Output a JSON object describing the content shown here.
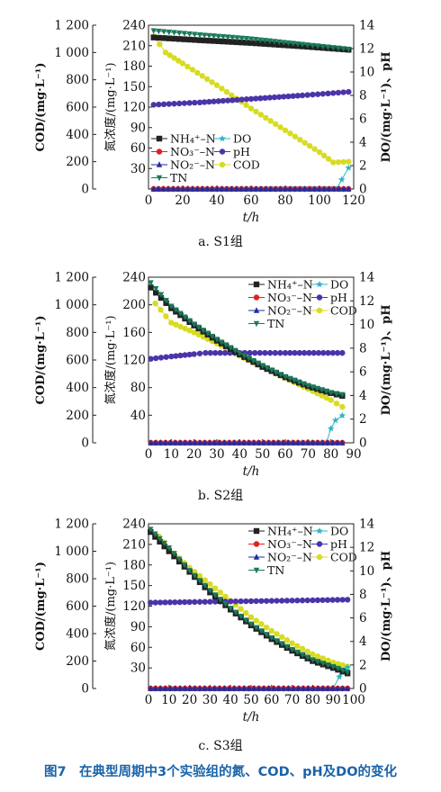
{
  "caption": "图7　在典型周期中3个实验组的氮、COD、pH及DO的变化",
  "axis_labels": {
    "cod": "COD/(mg·L⁻¹)",
    "n": "氮浓度/(mg·L⁻¹)",
    "do_ph": "DO/(mg·L⁻¹)、pH",
    "x": "t/h"
  },
  "colors": {
    "NH4": "#222222",
    "NO3": "#e32020",
    "NO2": "#1f2ea0",
    "TN": "#1a7a5a",
    "DO": "#2fb5c4",
    "pH": "#4b34a8",
    "COD": "#d8db22"
  },
  "chart_data": [
    {
      "type": "line",
      "title": "a. S1组",
      "xlabel": "t/h",
      "xlim": [
        0,
        120
      ],
      "xticks": [
        0,
        20,
        40,
        60,
        80,
        100,
        120
      ],
      "y_left_label": "COD/(mg·L⁻¹)",
      "y_left_lim": [
        0,
        1200
      ],
      "y_left_ticks": [
        0,
        200,
        400,
        600,
        800,
        1000,
        1200
      ],
      "y_left_ticklabels": [
        "0",
        "200",
        "400",
        "600",
        "800",
        "1 000",
        "1 200"
      ],
      "y_mid_label": "氮浓度/(mg·L⁻¹)",
      "y_mid_lim": [
        0,
        240
      ],
      "y_mid_ticks": [
        30,
        60,
        90,
        120,
        150,
        180,
        210,
        240
      ],
      "y_right_label": "DO/(mg·L⁻¹)、pH",
      "y_right_lim": [
        0,
        14
      ],
      "y_right_ticks": [
        0,
        2,
        4,
        6,
        8,
        10,
        12,
        14
      ],
      "legend": [
        "NH4",
        "DO",
        "NO3",
        "pH",
        "NO2",
        "COD",
        "TN"
      ],
      "series": [
        {
          "name": "NH₄⁺–N",
          "key": "NH4",
          "axis": "mid",
          "marker": "square",
          "points": [
            [
              3,
              222
            ],
            [
              30,
              218
            ],
            [
              60,
              214
            ],
            [
              90,
              209
            ],
            [
              117,
              204
            ]
          ]
        },
        {
          "name": "NO₃⁻–N",
          "key": "NO3",
          "axis": "mid",
          "marker": "circle",
          "points": [
            [
              3,
              0
            ],
            [
              117,
              0
            ]
          ]
        },
        {
          "name": "NO₂⁻–N",
          "key": "NO2",
          "axis": "mid",
          "marker": "triangle",
          "points": [
            [
              3,
              0
            ],
            [
              117,
              0
            ]
          ]
        },
        {
          "name": "TN",
          "key": "TN",
          "axis": "mid",
          "marker": "triangle-down",
          "points": [
            [
              3,
              232
            ],
            [
              30,
              226
            ],
            [
              60,
              220
            ],
            [
              90,
              212
            ],
            [
              117,
              205
            ]
          ]
        },
        {
          "name": "DO",
          "key": "DO",
          "axis": "right",
          "marker": "star",
          "points": [
            [
              3,
              0
            ],
            [
              110,
              0
            ],
            [
              113,
              0.8
            ],
            [
              117,
              1.8
            ]
          ]
        },
        {
          "name": "pH",
          "key": "pH",
          "axis": "right",
          "marker": "circle",
          "points": [
            [
              3,
              7.2
            ],
            [
              30,
              7.4
            ],
            [
              60,
              7.7
            ],
            [
              90,
              8.0
            ],
            [
              117,
              8.3
            ]
          ]
        },
        {
          "name": "COD",
          "key": "COD",
          "axis": "left",
          "marker": "circle",
          "points": [
            [
              3,
              1120
            ],
            [
              10,
              1000
            ],
            [
              20,
              920
            ],
            [
              40,
              760
            ],
            [
              60,
              590
            ],
            [
              80,
              430
            ],
            [
              100,
              270
            ],
            [
              108,
              195
            ],
            [
              117,
              200
            ]
          ]
        }
      ]
    },
    {
      "type": "line",
      "title": "b. S2组",
      "xlabel": "t/h",
      "xlim": [
        0,
        90
      ],
      "xticks": [
        0,
        10,
        20,
        30,
        40,
        50,
        60,
        70,
        80,
        90
      ],
      "y_left_label": "COD/(mg·L⁻¹)",
      "y_left_lim": [
        0,
        1200
      ],
      "y_left_ticks": [
        0,
        200,
        400,
        600,
        800,
        1000,
        1200
      ],
      "y_left_ticklabels": [
        "0",
        "200",
        "400",
        "600",
        "800",
        "1 000",
        "1 200"
      ],
      "y_mid_label": "氮浓度/(mg·L⁻¹)",
      "y_mid_lim": [
        0,
        240
      ],
      "y_mid_ticks": [
        40,
        80,
        120,
        160,
        200,
        240
      ],
      "y_right_label": "DO/(mg·L⁻¹)、pH",
      "y_right_lim": [
        0,
        14
      ],
      "y_right_ticks": [
        0,
        2,
        4,
        6,
        8,
        10,
        12,
        14
      ],
      "legend": [
        "NH4",
        "DO",
        "NO3",
        "pH",
        "NO2",
        "COD",
        "TN"
      ],
      "series": [
        {
          "name": "NH₄⁺–N",
          "key": "NH4",
          "axis": "mid",
          "marker": "square",
          "points": [
            [
              1,
              225
            ],
            [
              10,
              195
            ],
            [
              20,
              170
            ],
            [
              30,
              148
            ],
            [
              40,
              128
            ],
            [
              50,
              110
            ],
            [
              60,
              95
            ],
            [
              70,
              82
            ],
            [
              80,
              72
            ],
            [
              85,
              68
            ]
          ]
        },
        {
          "name": "NO₃⁻–N",
          "key": "NO3",
          "axis": "mid",
          "marker": "circle",
          "points": [
            [
              1,
              0
            ],
            [
              85,
              0
            ]
          ]
        },
        {
          "name": "NO₂⁻–N",
          "key": "NO2",
          "axis": "mid",
          "marker": "triangle",
          "points": [
            [
              1,
              0
            ],
            [
              85,
              0
            ]
          ]
        },
        {
          "name": "TN",
          "key": "TN",
          "axis": "mid",
          "marker": "triangle-down",
          "points": [
            [
              1,
              232
            ],
            [
              10,
              198
            ],
            [
              20,
              172
            ],
            [
              30,
              150
            ],
            [
              40,
              130
            ],
            [
              50,
              112
            ],
            [
              60,
              96
            ],
            [
              70,
              83
            ],
            [
              80,
              73
            ],
            [
              85,
              70
            ]
          ]
        },
        {
          "name": "DO",
          "key": "DO",
          "axis": "right",
          "marker": "star",
          "points": [
            [
              1,
              0
            ],
            [
              78,
              0
            ],
            [
              80,
              1.2
            ],
            [
              82,
              1.9
            ],
            [
              85,
              2.3
            ]
          ]
        },
        {
          "name": "pH",
          "key": "pH",
          "axis": "right",
          "marker": "circle",
          "points": [
            [
              1,
              7.1
            ],
            [
              10,
              7.3
            ],
            [
              20,
              7.5
            ],
            [
              25,
              7.6
            ],
            [
              40,
              7.6
            ],
            [
              60,
              7.6
            ],
            [
              85,
              7.6
            ]
          ]
        },
        {
          "name": "COD",
          "key": "COD",
          "axis": "left",
          "marker": "circle",
          "points": [
            [
              3,
              1010
            ],
            [
              10,
              870
            ],
            [
              20,
              800
            ],
            [
              30,
              720
            ],
            [
              40,
              630
            ],
            [
              50,
              550
            ],
            [
              60,
              470
            ],
            [
              70,
              390
            ],
            [
              80,
              310
            ],
            [
              85,
              260
            ]
          ]
        }
      ]
    },
    {
      "type": "line",
      "title": "c. S3组",
      "xlabel": "t/h",
      "xlim": [
        0,
        100
      ],
      "xticks": [
        0,
        10,
        20,
        30,
        40,
        50,
        60,
        70,
        80,
        90,
        100
      ],
      "y_left_label": "COD/(mg·L⁻¹)",
      "y_left_lim": [
        0,
        1200
      ],
      "y_left_ticks": [
        0,
        200,
        400,
        600,
        800,
        1000,
        1200
      ],
      "y_left_ticklabels": [
        "0",
        "200",
        "400",
        "600",
        "800",
        "1 000",
        "1 200"
      ],
      "y_mid_label": "氮浓度/(mg·L⁻¹)",
      "y_mid_lim": [
        0,
        240
      ],
      "y_mid_ticks": [
        30,
        60,
        90,
        120,
        150,
        180,
        210,
        240
      ],
      "y_right_label": "DO/(mg·L⁻¹)、pH",
      "y_right_lim": [
        0,
        14
      ],
      "y_right_ticks": [
        0,
        2,
        4,
        6,
        8,
        10,
        12,
        14
      ],
      "legend": [
        "NH4",
        "DO",
        "NO3",
        "pH",
        "NO2",
        "COD",
        "TN"
      ],
      "series": [
        {
          "name": "NH₄⁺–N",
          "key": "NH4",
          "axis": "mid",
          "marker": "square",
          "points": [
            [
              1,
              228
            ],
            [
              10,
              200
            ],
            [
              20,
              170
            ],
            [
              30,
              140
            ],
            [
              40,
              115
            ],
            [
              50,
              92
            ],
            [
              60,
              72
            ],
            [
              70,
              55
            ],
            [
              80,
              40
            ],
            [
              90,
              30
            ],
            [
              97,
              22
            ]
          ]
        },
        {
          "name": "NO₃⁻–N",
          "key": "NO3",
          "axis": "mid",
          "marker": "circle",
          "points": [
            [
              1,
              0
            ],
            [
              97,
              0
            ]
          ]
        },
        {
          "name": "NO₂⁻–N",
          "key": "NO2",
          "axis": "mid",
          "marker": "triangle",
          "points": [
            [
              1,
              0
            ],
            [
              97,
              0
            ]
          ]
        },
        {
          "name": "TN",
          "key": "TN",
          "axis": "mid",
          "marker": "triangle-down",
          "points": [
            [
              1,
              232
            ],
            [
              10,
              205
            ],
            [
              20,
              172
            ],
            [
              30,
              143
            ],
            [
              40,
              117
            ],
            [
              50,
              94
            ],
            [
              60,
              74
            ],
            [
              70,
              57
            ],
            [
              80,
              42
            ],
            [
              90,
              32
            ],
            [
              97,
              24
            ]
          ]
        },
        {
          "name": "DO",
          "key": "DO",
          "axis": "right",
          "marker": "star",
          "points": [
            [
              1,
              0
            ],
            [
              90,
              0
            ],
            [
              93,
              1.0
            ],
            [
              97,
              1.8
            ]
          ]
        },
        {
          "name": "pH",
          "key": "pH",
          "axis": "right",
          "marker": "circle",
          "points": [
            [
              1,
              7.3
            ],
            [
              20,
              7.35
            ],
            [
              40,
              7.4
            ],
            [
              60,
              7.45
            ],
            [
              80,
              7.5
            ],
            [
              97,
              7.55
            ]
          ]
        },
        {
          "name": "COD",
          "key": "COD",
          "axis": "left",
          "marker": "circle",
          "points": [
            [
              5,
              1110
            ],
            [
              10,
              1020
            ],
            [
              20,
              880
            ],
            [
              30,
              760
            ],
            [
              40,
              640
            ],
            [
              50,
              520
            ],
            [
              60,
              420
            ],
            [
              70,
              330
            ],
            [
              80,
              250
            ],
            [
              90,
              190
            ],
            [
              97,
              160
            ]
          ]
        }
      ]
    }
  ],
  "legend_labels": {
    "NH4": "NH₄⁺–N",
    "NO3": "NO₃⁻–N",
    "NO2": "NO₂⁻–N",
    "TN": "TN",
    "DO": "DO",
    "pH": "pH",
    "COD": "COD"
  }
}
